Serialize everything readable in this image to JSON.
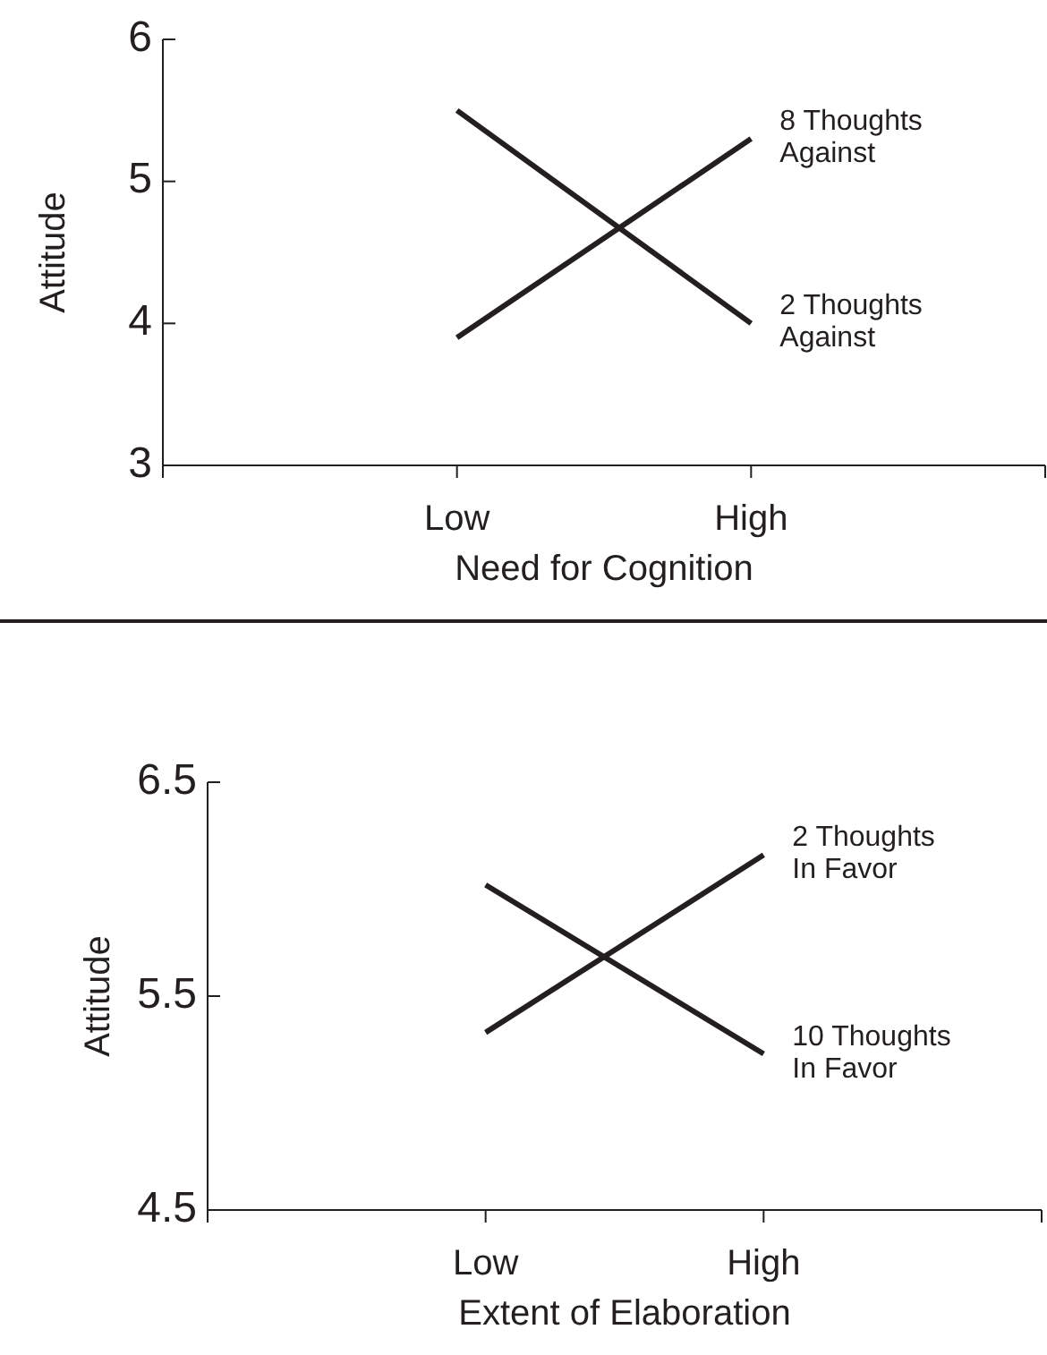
{
  "chart_data": [
    {
      "type": "line",
      "xlabel": "Need for Cognition",
      "ylabel": "Attitude",
      "categories": [
        null,
        "Low",
        "High",
        null
      ],
      "ylim": [
        3,
        6
      ],
      "yticks": [
        3,
        4,
        5,
        6
      ],
      "series": [
        {
          "name": "8 Thoughts Against",
          "color": "#231f20",
          "values": [
            null,
            3.9,
            5.3,
            null
          ]
        },
        {
          "name": "2 Thoughts Against",
          "color": "#231f20",
          "values": [
            null,
            5.5,
            4.0,
            null
          ]
        }
      ]
    },
    {
      "type": "line",
      "xlabel": "Extent of Elaboration",
      "ylabel": "Attitude",
      "categories": [
        null,
        "Low",
        "High",
        null
      ],
      "ylim": [
        4.5,
        6.5
      ],
      "yticks": [
        4.5,
        5.5,
        6.5
      ],
      "series": [
        {
          "name": "2 Thoughts In Favor",
          "color": "#231f20",
          "values": [
            null,
            5.33,
            6.16,
            null
          ]
        },
        {
          "name": "10 Thoughts In Favor",
          "color": "#231f20",
          "values": [
            null,
            6.02,
            5.23,
            null
          ]
        }
      ]
    }
  ]
}
